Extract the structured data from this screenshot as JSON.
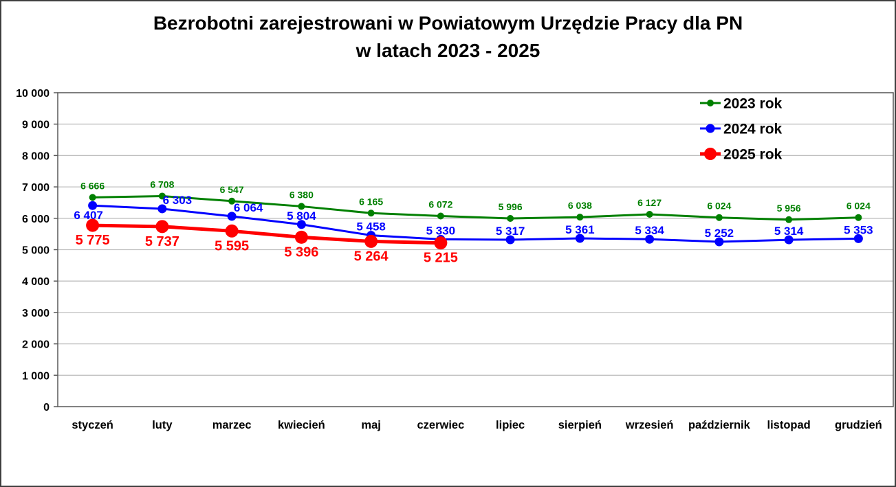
{
  "window": {
    "background": "#ffffff",
    "border_color": "#3f3f3f"
  },
  "chart_data": {
    "type": "line",
    "title_line1": "Bezrobotni zarejestrowani w Powiatowym Urzędzie Pracy dla PN",
    "title_line2": "w latach 2023 - 2025",
    "categories": [
      "styczeń",
      "luty",
      "marzec",
      "kwiecień",
      "maj",
      "czerwiec",
      "lipiec",
      "sierpień",
      "wrzesień",
      "październik",
      "listopad",
      "grudzień"
    ],
    "ylim": [
      0,
      10000
    ],
    "ytick_step": 1000,
    "ytick_labels": [
      "0",
      "1 000",
      "2 000",
      "3 000",
      "4 000",
      "5 000",
      "6 000",
      "7 000",
      "8 000",
      "9 000",
      "10 000"
    ],
    "grid": "horizontal",
    "grid_color": "#bfbfbf",
    "axis_color": "#595959",
    "text_color": "#000000",
    "legend_position": "top-right-inside",
    "series": [
      {
        "name": "2023 rok",
        "color": "#008000",
        "values": [
          6666,
          6708,
          6547,
          6380,
          6165,
          6072,
          5996,
          6038,
          6127,
          6024,
          5956,
          6024
        ],
        "labels": [
          "6 666",
          "6 708",
          "6 547",
          "6 380",
          "6 165",
          "6 072",
          "5 996",
          "6 038",
          "6 127",
          "6 024",
          "5 956",
          "6 024"
        ],
        "label_position": "above",
        "label_gap": 12,
        "label_font_size": 14,
        "line_width": 3,
        "marker_radius": 5,
        "label_overrides": {}
      },
      {
        "name": "2024 rok",
        "color": "#0000ff",
        "values": [
          6407,
          6303,
          6064,
          5804,
          5458,
          5330,
          5317,
          5361,
          5334,
          5252,
          5314,
          5353
        ],
        "labels": [
          "6 407",
          "6 303",
          "6 064",
          "5 804",
          "5 458",
          "5 330",
          "5 317",
          "5 361",
          "5 334",
          "5 252",
          "5 314",
          "5 353"
        ],
        "label_position": "above",
        "label_gap": 7,
        "label_font_size": 17,
        "line_width": 3,
        "marker_radius": 6.5,
        "label_overrides": {
          "0": {
            "dx": -6,
            "dy": 20
          },
          "1": {
            "dx": 22
          },
          "2": {
            "dx": 24
          }
        }
      },
      {
        "name": "2025 rok",
        "color": "#ff0000",
        "values": [
          5775,
          5737,
          5595,
          5396,
          5264,
          5215
        ],
        "labels": [
          "5 775",
          "5 737",
          "5 595",
          "5 396",
          "5 264",
          "5 215"
        ],
        "label_position": "below",
        "label_gap": 28,
        "label_font_size": 20,
        "line_width": 5,
        "marker_radius": 9.5,
        "label_overrides": {}
      }
    ]
  }
}
